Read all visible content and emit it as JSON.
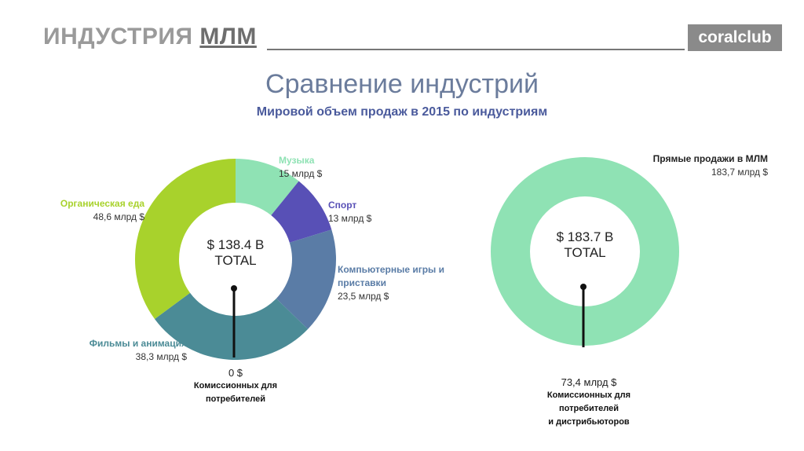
{
  "header": {
    "title": "ИНДУСТРИЯ",
    "highlight": "МЛМ",
    "logo": "coralclub"
  },
  "title": "Сравнение индустрий",
  "subtitle": "Мировой объем продаж в 2015 по индустриям",
  "chart_data": [
    {
      "type": "donut",
      "categories": [
        "Музыка",
        "Спорт",
        "Компьютерные игры и приставки",
        "Фильмы и анимация",
        "Органическая еда"
      ],
      "values": [
        15,
        13,
        23.5,
        38.3,
        48.6
      ],
      "value_labels": [
        "15 млрд $",
        "13 млрд $",
        "23,5 млрд $",
        "38,3 млрд $",
        "48,6 млрд $"
      ],
      "colors": [
        "#8fe2b4",
        "#5850b6",
        "#5a7ca6",
        "#4b8b96",
        "#a8d22c"
      ],
      "center_label": [
        "$ 138.4 B",
        "TOTAL"
      ],
      "annotation": {
        "value": "0 $",
        "text": [
          "Комиссионных для",
          "потребителей"
        ]
      }
    },
    {
      "type": "donut",
      "categories": [
        "Прямые продажи в МЛМ"
      ],
      "values": [
        183.7
      ],
      "value_labels": [
        "183,7  млрд $"
      ],
      "colors": [
        "#8fe2b4"
      ],
      "center_label": [
        "$ 183.7 B",
        "TOTAL"
      ],
      "annotation": {
        "value": "73,4 млрд $",
        "text": [
          "Комиссионных для",
          "потребителей",
          "и дистрибьюторов"
        ]
      }
    }
  ]
}
